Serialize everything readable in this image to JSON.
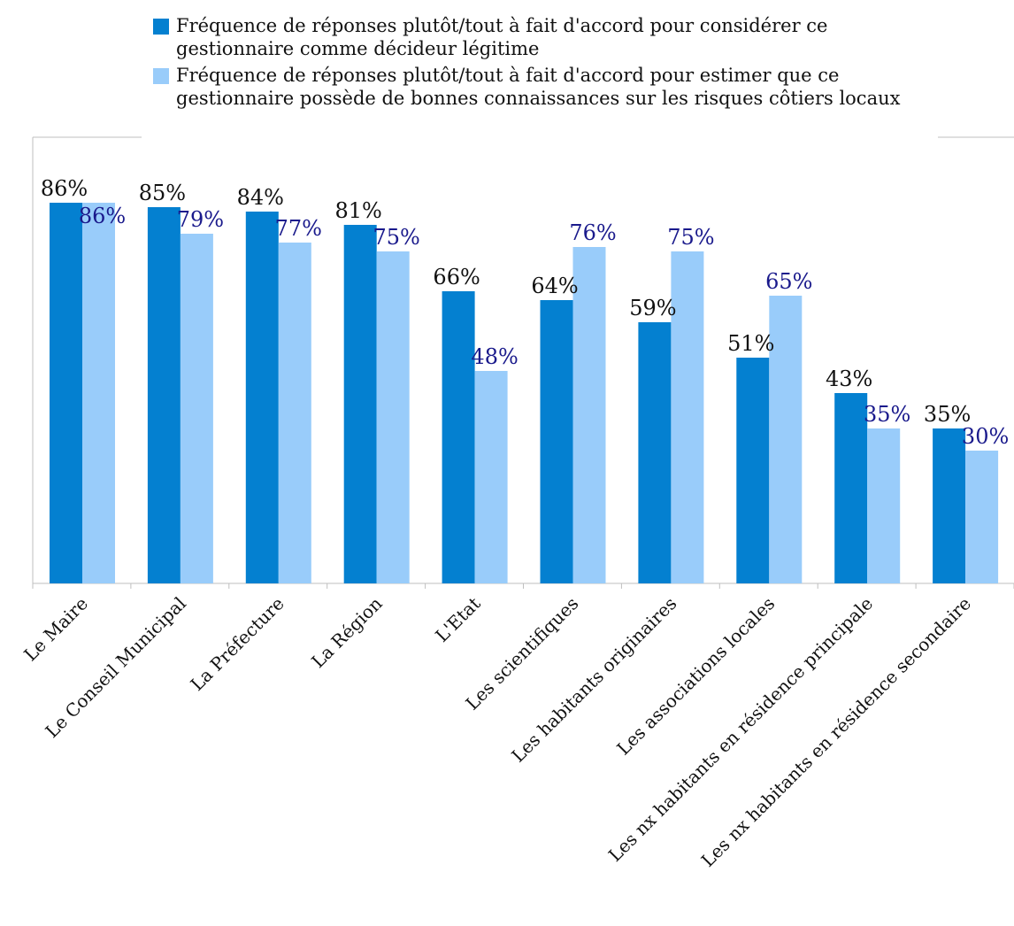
{
  "chart_data": {
    "type": "bar",
    "categories": [
      "Le Maire",
      "Le Conseil Municipal",
      "La Préfecture",
      "La Région",
      "L'Etat",
      "Les scientifiques",
      "Les habitants originaires",
      "Les associations locales",
      "Les nx habitants en résidence principale",
      "Les nx habitants en résidence secondaire"
    ],
    "series": [
      {
        "name": "Fréquence de réponses plutôt/tout à fait d'accord pour considérer ce gestionnaire comme décideur légitime",
        "values": [
          86,
          85,
          84,
          81,
          66,
          64,
          59,
          51,
          43,
          35
        ],
        "labels": [
          "86%",
          "85%",
          "84%",
          "81%",
          "66%",
          "64%",
          "59%",
          "51%",
          "43%",
          "35%"
        ],
        "color": "#0480d0",
        "label_color": "#111111"
      },
      {
        "name": "Fréquence de réponses plutôt/tout à fait d'accord pour estimer que ce gestionnaire possède de bonnes connaissances sur les risques côtiers locaux",
        "values": [
          86,
          79,
          77,
          75,
          48,
          76,
          75,
          65,
          35,
          30
        ],
        "labels": [
          "86%",
          "79%",
          "77%",
          "75%",
          "48%",
          "76%",
          "75%",
          "65%",
          "35%",
          "30%"
        ],
        "color": "#99ccfa",
        "label_color": "#1a1a8c"
      }
    ],
    "ylim": [
      0,
      100
    ],
    "grid": false,
    "legend_position": "top",
    "axis_color": "#bfbfbf"
  }
}
